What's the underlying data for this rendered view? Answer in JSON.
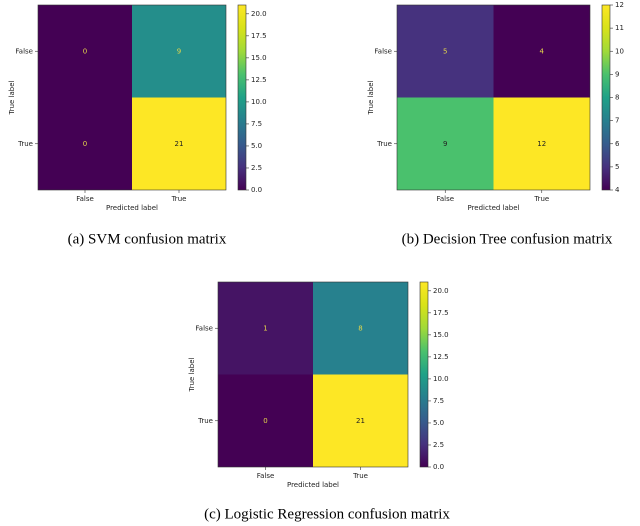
{
  "chart_data": [
    {
      "type": "heatmap",
      "caption": "(a) SVM confusion matrix",
      "x_label": "Predicted label",
      "y_label": "True label",
      "x_categories": [
        "False",
        "True"
      ],
      "y_categories": [
        "False",
        "True"
      ],
      "values": [
        [
          0,
          9
        ],
        [
          0,
          21
        ]
      ],
      "colormap": "viridis",
      "clim": [
        0,
        21
      ],
      "cticks": [
        {
          "value": 0,
          "label": "0.0"
        },
        {
          "value": 2.5,
          "label": "2.5"
        },
        {
          "value": 5,
          "label": "5.0"
        },
        {
          "value": 7.5,
          "label": "7.5"
        },
        {
          "value": 10,
          "label": "10.0"
        },
        {
          "value": 12.5,
          "label": "12.5"
        },
        {
          "value": 15,
          "label": "15.0"
        },
        {
          "value": 17.5,
          "label": "17.5"
        },
        {
          "value": 20,
          "label": "20.0"
        }
      ]
    },
    {
      "type": "heatmap",
      "caption": "(b) Decision Tree confusion matrix",
      "x_label": "Predicted label",
      "y_label": "True label",
      "x_categories": [
        "False",
        "True"
      ],
      "y_categories": [
        "False",
        "True"
      ],
      "values": [
        [
          5,
          4
        ],
        [
          9,
          12
        ]
      ],
      "colormap": "viridis",
      "clim": [
        4,
        12
      ],
      "cticks": [
        4,
        5,
        6,
        7,
        8,
        9,
        10,
        11,
        12
      ]
    },
    {
      "type": "heatmap",
      "caption": "(c) Logistic Regression confusion matrix",
      "x_label": "Predicted label",
      "y_label": "True label",
      "x_categories": [
        "False",
        "True"
      ],
      "y_categories": [
        "False",
        "True"
      ],
      "values": [
        [
          1,
          8
        ],
        [
          0,
          21
        ]
      ],
      "colormap": "viridis",
      "clim": [
        0,
        21
      ],
      "cticks": [
        {
          "value": 0,
          "label": "0.0"
        },
        {
          "value": 2.5,
          "label": "2.5"
        },
        {
          "value": 5,
          "label": "5.0"
        },
        {
          "value": 7.5,
          "label": "7.5"
        },
        {
          "value": 10,
          "label": "10.0"
        },
        {
          "value": 12.5,
          "label": "12.5"
        },
        {
          "value": 15,
          "label": "15.0"
        },
        {
          "value": 17.5,
          "label": "17.5"
        },
        {
          "value": 20,
          "label": "20.0"
        }
      ]
    }
  ]
}
